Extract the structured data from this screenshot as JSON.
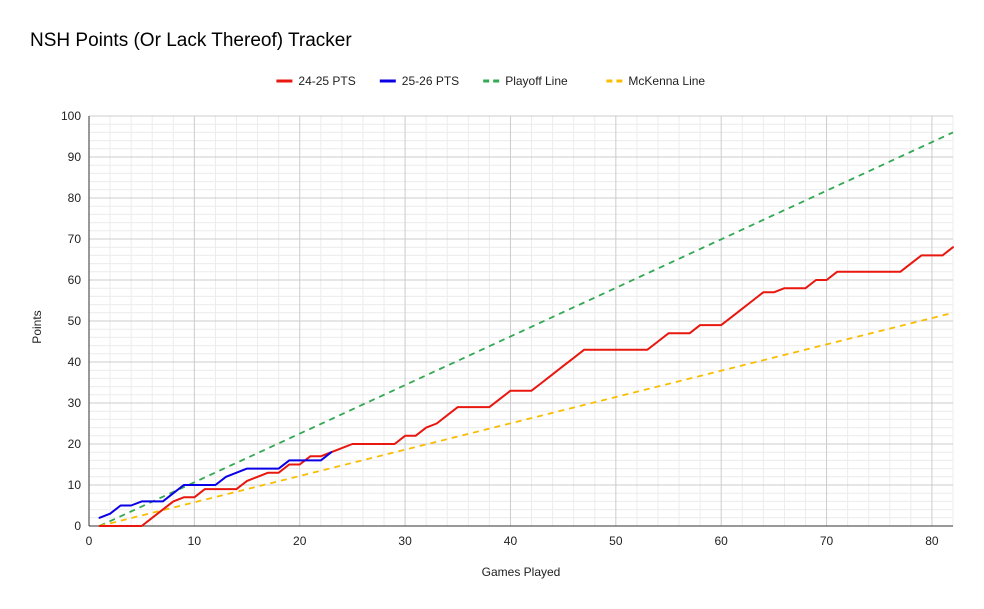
{
  "chart_data": {
    "type": "line",
    "title": "NSH Points (Or Lack Thereof) Tracker",
    "xlabel": "Games Played",
    "ylabel": "Points",
    "xlim": [
      0,
      82
    ],
    "ylim": [
      0,
      100
    ],
    "x_ticks": [
      0,
      10,
      20,
      30,
      40,
      50,
      60,
      70,
      80
    ],
    "y_ticks": [
      0,
      10,
      20,
      30,
      40,
      50,
      60,
      70,
      80,
      90,
      100
    ],
    "grid": true,
    "legend_position": "top",
    "series": [
      {
        "name": "24-25 PTS",
        "color": "#e8170f",
        "dashed": false,
        "x": [
          1,
          2,
          3,
          4,
          5,
          6,
          7,
          8,
          9,
          10,
          11,
          12,
          13,
          14,
          15,
          16,
          17,
          18,
          19,
          20,
          21,
          22,
          23,
          24,
          25,
          26,
          27,
          28,
          29,
          30,
          31,
          32,
          33,
          34,
          35,
          36,
          37,
          38,
          39,
          40,
          41,
          42,
          43,
          44,
          45,
          46,
          47,
          48,
          49,
          50,
          51,
          52,
          53,
          54,
          55,
          56,
          57,
          58,
          59,
          60,
          61,
          62,
          63,
          64,
          65,
          66,
          67,
          68,
          69,
          70,
          71,
          72,
          73,
          74,
          75,
          76,
          77,
          78,
          79,
          80,
          81,
          82
        ],
        "values": [
          0,
          0,
          0,
          0,
          0,
          2,
          4,
          6,
          7,
          7,
          9,
          9,
          9,
          9,
          11,
          12,
          13,
          13,
          15,
          15,
          17,
          17,
          18,
          19,
          20,
          20,
          20,
          20,
          20,
          22,
          22,
          24,
          25,
          27,
          29,
          29,
          29,
          29,
          31,
          33,
          33,
          33,
          35,
          37,
          39,
          41,
          43,
          43,
          43,
          43,
          43,
          43,
          43,
          45,
          47,
          47,
          47,
          49,
          49,
          49,
          51,
          53,
          55,
          57,
          57,
          58,
          58,
          58,
          60,
          60,
          62,
          62,
          62,
          62,
          62,
          62,
          62,
          64,
          66,
          66,
          66,
          68
        ]
      },
      {
        "name": "25-26 PTS",
        "color": "#0a00e6",
        "dashed": false,
        "x": [
          1,
          2,
          3,
          4,
          5,
          6,
          7,
          8,
          9,
          10,
          11,
          12,
          13,
          14,
          15,
          16,
          17,
          18,
          19,
          20,
          21,
          22,
          23
        ],
        "values": [
          2,
          3,
          5,
          5,
          6,
          6,
          6,
          8,
          10,
          10,
          10,
          10,
          12,
          13,
          14,
          14,
          14,
          14,
          16,
          16,
          16,
          16,
          18
        ]
      },
      {
        "name": "Playoff Line",
        "color": "#34a853",
        "dashed": true,
        "x": [
          1,
          82
        ],
        "values": [
          0,
          96
        ]
      },
      {
        "name": "McKenna Line",
        "color": "#fbbc04",
        "dashed": true,
        "x": [
          1,
          82
        ],
        "values": [
          0,
          52
        ]
      }
    ]
  }
}
